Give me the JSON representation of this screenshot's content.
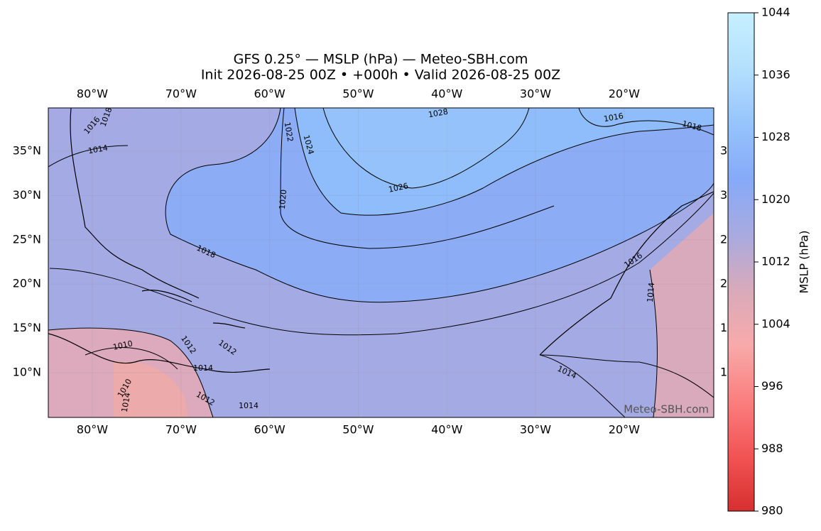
{
  "title": "GFS 0.25° — MSLP (hPa) — Meteo-SBH.com",
  "subtitle": "Init 2026-08-25 00Z • +000h • Valid 2026-08-25 00Z",
  "map": {
    "lon_labels": [
      "80°W",
      "70°W",
      "60°W",
      "50°W",
      "40°W",
      "30°W",
      "20°W"
    ],
    "lat_labels": [
      "35°N",
      "30°N",
      "25°N",
      "20°N",
      "15°N",
      "10°N"
    ],
    "right_lat_labels": [
      "3",
      "3",
      "2",
      "2",
      "1",
      "1"
    ],
    "contour_labels": [
      1028,
      1026,
      1024,
      1022,
      1020,
      1018,
      1016,
      1018,
      1016,
      1016,
      1014,
      1018,
      1014,
      1012,
      1014,
      1014,
      1010,
      1012,
      1014,
      1012,
      1014,
      1010
    ],
    "watermark": "Meteo-SBH.com"
  },
  "colorbar": {
    "label": "MSLP (hPa)",
    "lim": [
      980,
      1044
    ],
    "ticks": [
      980,
      988,
      996,
      1004,
      1012,
      1020,
      1028,
      1036,
      1044
    ],
    "colors": [
      "#d62f2f",
      "#f25454",
      "#fb7f7f",
      "#f8aaaa",
      "#d8aabb",
      "#a8aae0",
      "#86aaf8",
      "#96c4fc",
      "#b4e0fe",
      "#c6f0ff"
    ]
  }
}
